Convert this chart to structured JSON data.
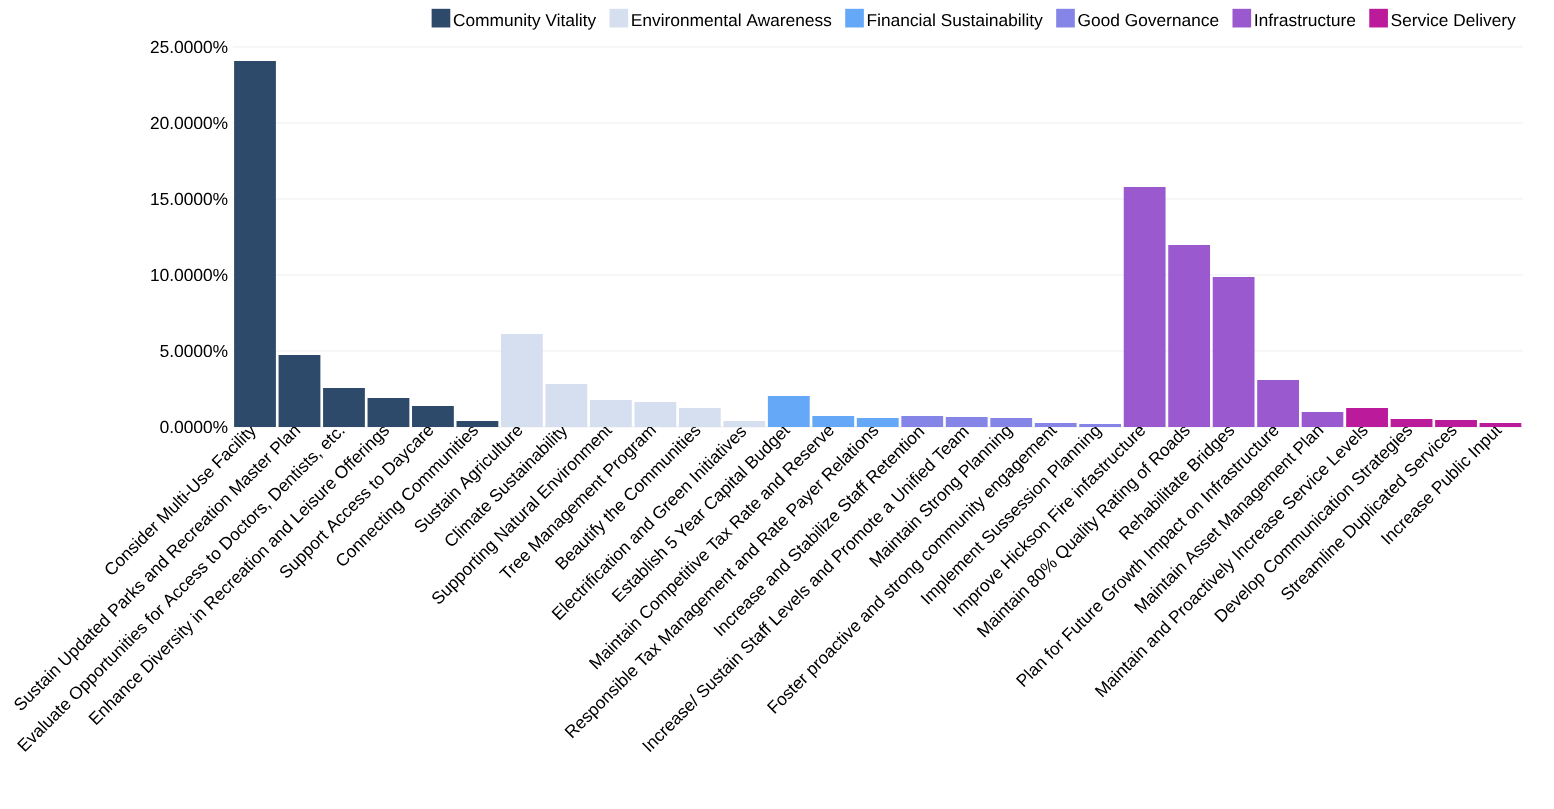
{
  "chart_data": {
    "type": "bar",
    "categories": [
      "Consider Multi-Use Facility",
      "Sustain Updated Parks and Recreation Master Plan",
      "Evaluate Opportunities for Access to Doctors, Dentists, etc.",
      "Enhance Diversity in Recreation and Leisure Offerings",
      "Support Access to Daycare",
      "Connecting Communities",
      "Sustain Agriculture",
      "Climate Sustainability",
      "Supporting Natural Environment",
      "Tree Management Program",
      "Beautify the Communities",
      "Electrification and Green Initiatives",
      "Establish 5 Year Capital Budget",
      "Maintain Competitive Tax Rate and Reserve",
      "Responsible Tax Management and Rate Payer Relations",
      "Increase and Stabilize Staff Retention",
      "Increase/ Sustain Staff Levels and Promote a Unified Team",
      "Maintain Strong Planning",
      "Foster proactive and strong community engagement",
      "Implement Sussession Planning",
      "Improve Hickson Fire infastructure",
      "Maintain 80% Quality Rating of Roads",
      "Rehabilitate Bridges",
      "Plan for Future Growth Impact on Infrastructure",
      "Maintain Asset Management Plan",
      "Maintain and Proactively Increase Service Levels",
      "Develop Communication Strategies",
      "Streamline Duplicated Services",
      "Increase Public Input"
    ],
    "series": [
      {
        "name": "Community Vitality",
        "color": "#2e4a6b",
        "values": [
          24.08,
          4.74,
          2.57,
          1.91,
          1.38,
          0.39,
          null,
          null,
          null,
          null,
          null,
          null,
          null,
          null,
          null,
          null,
          null,
          null,
          null,
          null,
          null,
          null,
          null,
          null,
          null,
          null,
          null,
          null,
          null
        ]
      },
      {
        "name": "Environmental Awareness",
        "color": "#d6dfef",
        "values": [
          null,
          null,
          null,
          null,
          null,
          null,
          6.12,
          2.83,
          1.78,
          1.64,
          1.25,
          0.39,
          null,
          null,
          null,
          null,
          null,
          null,
          null,
          null,
          null,
          null,
          null,
          null,
          null,
          null,
          null,
          null,
          null
        ]
      },
      {
        "name": "Financial Sustainability",
        "color": "#66a8f8",
        "values": [
          null,
          null,
          null,
          null,
          null,
          null,
          null,
          null,
          null,
          null,
          null,
          null,
          2.04,
          0.72,
          0.59,
          null,
          null,
          null,
          null,
          null,
          null,
          null,
          null,
          null,
          null,
          null,
          null,
          null,
          null
        ]
      },
      {
        "name": "Good Governance",
        "color": "#8585e8",
        "values": [
          null,
          null,
          null,
          null,
          null,
          null,
          null,
          null,
          null,
          null,
          null,
          null,
          null,
          null,
          null,
          0.72,
          0.66,
          0.59,
          0.26,
          0.2,
          null,
          null,
          null,
          null,
          null,
          null,
          null,
          null,
          null
        ]
      },
      {
        "name": "Infrastructure",
        "color": "#9b59cf",
        "values": [
          null,
          null,
          null,
          null,
          null,
          null,
          null,
          null,
          null,
          null,
          null,
          null,
          null,
          null,
          null,
          null,
          null,
          null,
          null,
          null,
          15.79,
          11.97,
          9.87,
          3.09,
          0.99,
          null,
          null,
          null,
          null
        ]
      },
      {
        "name": "Service Delivery",
        "color": "#bb1a9a",
        "values": [
          null,
          null,
          null,
          null,
          null,
          null,
          null,
          null,
          null,
          null,
          null,
          null,
          null,
          null,
          null,
          null,
          null,
          null,
          null,
          null,
          null,
          null,
          null,
          null,
          null,
          1.25,
          0.53,
          0.46,
          0.26
        ]
      }
    ],
    "ylim": [
      0,
      25
    ],
    "yticks": [
      {
        "value": 0,
        "label": "0.0000%"
      },
      {
        "value": 5,
        "label": "5.0000%"
      },
      {
        "value": 10,
        "label": "10.0000%"
      },
      {
        "value": 15,
        "label": "15.0000%"
      },
      {
        "value": 20,
        "label": "20.0000%"
      },
      {
        "value": 25,
        "label": "25.0000%"
      }
    ],
    "grid": "y",
    "legend": "top"
  }
}
